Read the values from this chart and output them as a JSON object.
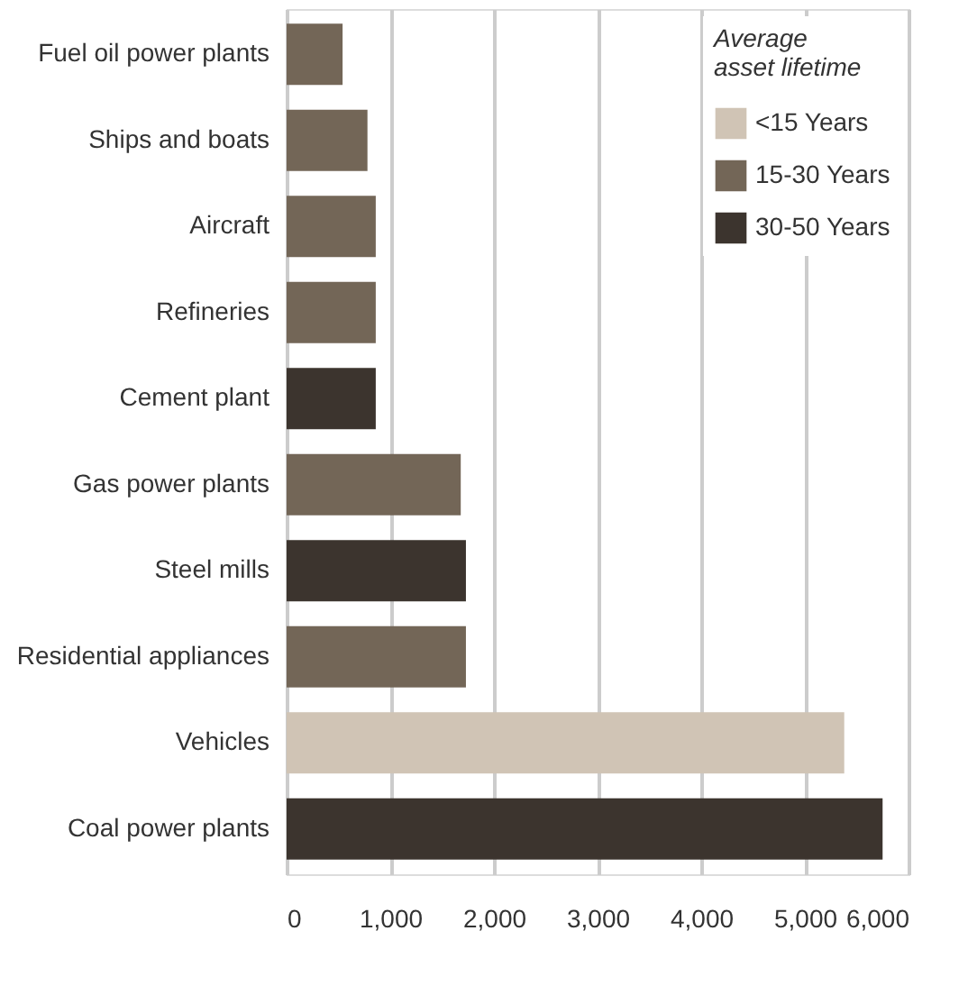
{
  "chart_data": {
    "type": "bar",
    "orientation": "horizontal",
    "legend_title": "Average asset lifetime",
    "legend": "top right",
    "grid": "x",
    "categories": [
      "Fuel oil power plants",
      "Ships and boats",
      "Aircraft",
      "Refineries",
      "Cement plant",
      "Gas power plants",
      "Steel mills",
      "Residential appliances",
      "Vehicles",
      "Coal power plants"
    ],
    "series": [
      {
        "name": "<15 Years",
        "color": "#d0c4b5",
        "values": [
          null,
          null,
          null,
          null,
          null,
          null,
          null,
          null,
          5380,
          null
        ]
      },
      {
        "name": "15-30 Years",
        "color": "#736657",
        "values": [
          540,
          780,
          860,
          860,
          null,
          1680,
          null,
          1730,
          null,
          null
        ]
      },
      {
        "name": "30-50 Years",
        "color": "#3c342e",
        "values": [
          null,
          null,
          null,
          null,
          860,
          null,
          1730,
          null,
          null,
          5750
        ]
      }
    ],
    "xlim": [
      0,
      6000
    ],
    "xticks": [
      0,
      {
        "value": 1000,
        "label": "1,000"
      },
      {
        "value": 2000,
        "label": "2,000"
      },
      {
        "value": 3000,
        "label": "3,000"
      },
      {
        "value": 4000,
        "label": "4,000"
      },
      {
        "value": 5000,
        "label": "5,000"
      },
      {
        "value": 6000,
        "label": "6,000"
      }
    ]
  }
}
